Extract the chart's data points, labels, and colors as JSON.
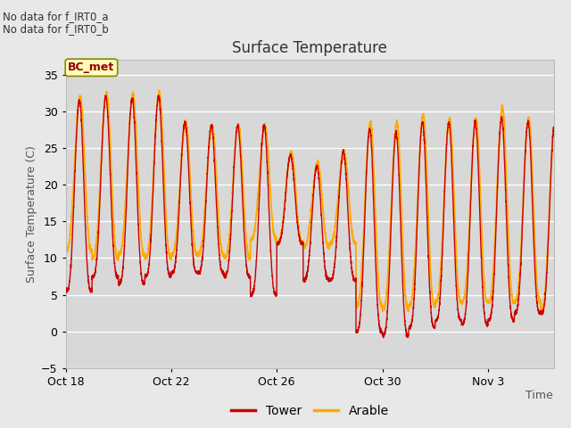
{
  "title": "Surface Temperature",
  "xlabel": "Time",
  "ylabel": "Surface Temperature (C)",
  "ylim": [
    -5,
    37
  ],
  "yticks": [
    -5,
    0,
    5,
    10,
    15,
    20,
    25,
    30,
    35
  ],
  "note_line1": "No data for f_IRT0_a",
  "note_line2": "No data for f_IRT0_b",
  "bc_met_label": "BC_met",
  "legend_tower": "Tower",
  "legend_arable": "Arable",
  "tower_color": "#cc0000",
  "arable_color": "#ffaa00",
  "background_color": "#e8e8e8",
  "plot_bg_color": "#d8d8d8",
  "grid_color": "#ffffff",
  "xtick_labels": [
    "Oct 18",
    "Oct 22",
    "Oct 26",
    "Oct 30",
    "Nov 3"
  ],
  "xtick_positions": [
    0,
    4,
    8,
    12,
    16
  ],
  "total_days": 18.5
}
